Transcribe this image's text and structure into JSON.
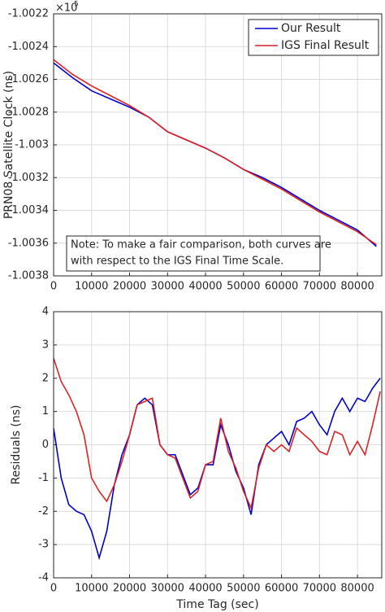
{
  "chart_data": [
    {
      "type": "line",
      "ylabel": "PRN08 Satellite Clock (ns)",
      "y_multiplier": {
        "base": "×10",
        "exponent": "5"
      },
      "x": [
        0,
        5000,
        10000,
        15000,
        20000,
        25000,
        30000,
        35000,
        40000,
        45000,
        50000,
        55000,
        60000,
        65000,
        70000,
        75000,
        80000,
        85000
      ],
      "series": [
        {
          "name": "Our Result",
          "color": "#0000cc",
          "values": [
            -1.0025,
            -1.00259,
            -1.00267,
            -1.00272,
            -1.00277,
            -1.00283,
            -1.00292,
            -1.00297,
            -1.00302,
            -1.00308,
            -1.00315,
            -1.0032,
            -1.00326,
            -1.00333,
            -1.0034,
            -1.00346,
            -1.00352,
            -1.00362
          ]
        },
        {
          "name": "IGS Final Result",
          "color": "#dd2222",
          "values": [
            -1.00248,
            -1.00257,
            -1.00264,
            -1.0027,
            -1.00276,
            -1.00283,
            -1.00292,
            -1.00297,
            -1.00302,
            -1.00308,
            -1.00315,
            -1.00321,
            -1.00327,
            -1.00334,
            -1.00341,
            -1.00347,
            -1.00353,
            -1.00361
          ]
        }
      ],
      "xlim": [
        0,
        86400
      ],
      "xticks": [
        0,
        10000,
        20000,
        30000,
        40000,
        50000,
        60000,
        70000,
        80000
      ],
      "ylim": [
        -1.0038,
        -1.0022
      ],
      "yticks": [
        -1.0038,
        -1.0036,
        -1.0034,
        -1.0032,
        -1.003,
        -1.0028,
        -1.0026,
        -1.0024,
        -1.0022
      ],
      "grid": true,
      "legend": "northeast",
      "annotation": [
        "Note: To make a fair comparison, both curves are",
        "with respect to the IGS Final Time Scale."
      ]
    },
    {
      "type": "line",
      "xlabel": "Time Tag (sec)",
      "ylabel": "Residuals (ns)",
      "x": [
        0,
        2000,
        4000,
        6000,
        8000,
        10000,
        12000,
        14000,
        16000,
        18000,
        20000,
        22000,
        24000,
        26000,
        28000,
        30000,
        32000,
        34000,
        36000,
        38000,
        40000,
        42000,
        44000,
        46000,
        48000,
        50000,
        52000,
        54000,
        56000,
        58000,
        60000,
        62000,
        64000,
        66000,
        68000,
        70000,
        72000,
        74000,
        76000,
        78000,
        80000,
        82000,
        84000,
        86000
      ],
      "series": [
        {
          "name": "Our Result",
          "color": "#0000cc",
          "values": [
            0.5,
            -1.0,
            -1.8,
            -2.0,
            -2.1,
            -2.6,
            -3.4,
            -2.6,
            -1.2,
            -0.3,
            0.3,
            1.2,
            1.4,
            1.2,
            0.0,
            -0.3,
            -0.3,
            -0.9,
            -1.5,
            -1.3,
            -0.6,
            -0.6,
            0.6,
            0.0,
            -0.8,
            -1.3,
            -2.1,
            -0.6,
            0.0,
            0.2,
            0.4,
            0.0,
            0.7,
            0.8,
            1.0,
            0.6,
            0.3,
            1.0,
            1.4,
            1.0,
            1.4,
            1.3,
            1.7,
            2.0
          ]
        },
        {
          "name": "IGS Final Result",
          "color": "#dd2222",
          "values": [
            2.6,
            1.9,
            1.5,
            1.0,
            0.3,
            -1.0,
            -1.4,
            -1.7,
            -1.2,
            -0.5,
            0.3,
            1.2,
            1.3,
            1.4,
            0.0,
            -0.3,
            -0.4,
            -1.0,
            -1.6,
            -1.4,
            -0.6,
            -0.5,
            0.8,
            -0.2,
            -0.7,
            -1.4,
            -1.9,
            -0.7,
            0.0,
            -0.2,
            0.0,
            -0.2,
            0.5,
            0.3,
            0.1,
            -0.2,
            -0.3,
            0.4,
            0.3,
            -0.3,
            0.1,
            -0.3,
            0.6,
            1.6
          ]
        }
      ],
      "xlim": [
        0,
        86400
      ],
      "xticks": [
        0,
        10000,
        20000,
        30000,
        40000,
        50000,
        60000,
        70000,
        80000
      ],
      "ylim": [
        -4,
        4
      ],
      "yticks": [
        -4,
        -3,
        -2,
        -1,
        0,
        1,
        2,
        3,
        4
      ],
      "grid": true
    }
  ]
}
